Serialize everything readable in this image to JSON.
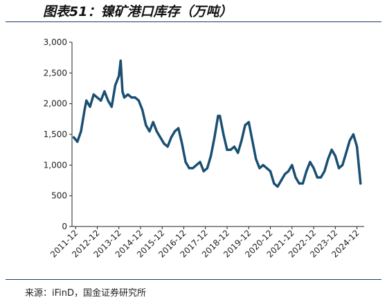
{
  "header": {
    "title": "图表51：镍矿港口库存（万吨）"
  },
  "footer": {
    "source": "来源：iFinD，国金证券研究所"
  },
  "chart_data": {
    "type": "line",
    "title": "图表51：镍矿港口库存（万吨）",
    "xlabel": "",
    "ylabel": "",
    "ylim": [
      0,
      3000
    ],
    "xlim": [
      "2011-10",
      "2025-04"
    ],
    "y_ticks": [
      "0",
      "500",
      "1,000",
      "1,500",
      "2,000",
      "2,500",
      "3,000"
    ],
    "x_ticks": [
      "2011-12",
      "2012-12",
      "2013-12",
      "2014-12",
      "2015-12",
      "2016-12",
      "2017-12",
      "2018-12",
      "2019-12",
      "2020-12",
      "2021-12",
      "2022-12",
      "2023-12",
      "2024-12"
    ],
    "grid": false,
    "legend": "none",
    "color": "#1a4f72",
    "series": [
      {
        "x": [
          "2011-11",
          "2012-01",
          "2012-03",
          "2012-05",
          "2012-06",
          "2012-08",
          "2012-10",
          "2012-12",
          "2013-02",
          "2013-04",
          "2013-06",
          "2013-08",
          "2013-10",
          "2013-12",
          "2014-01",
          "2014-02",
          "2014-03",
          "2014-05",
          "2014-07",
          "2014-09",
          "2014-11",
          "2015-01",
          "2015-03",
          "2015-05",
          "2015-07",
          "2015-09",
          "2015-11",
          "2016-01",
          "2016-03",
          "2016-05",
          "2016-07",
          "2016-09",
          "2016-11",
          "2017-01",
          "2017-03",
          "2017-05",
          "2017-07",
          "2017-09",
          "2017-11",
          "2018-01",
          "2018-03",
          "2018-05",
          "2018-07",
          "2018-08",
          "2018-10",
          "2018-12",
          "2019-02",
          "2019-04",
          "2019-06",
          "2019-08",
          "2019-10",
          "2019-12",
          "2020-02",
          "2020-04",
          "2020-06",
          "2020-08",
          "2020-10",
          "2020-12",
          "2021-02",
          "2021-04",
          "2021-06",
          "2021-08",
          "2021-10",
          "2021-12",
          "2022-02",
          "2022-04",
          "2022-06",
          "2022-08",
          "2022-10",
          "2022-12",
          "2023-02",
          "2023-04",
          "2023-06",
          "2023-08",
          "2023-10",
          "2023-12",
          "2024-02",
          "2024-04",
          "2024-06",
          "2024-08",
          "2024-10",
          "2024-12",
          "2025-02"
        ],
        "values": [
          1450,
          1380,
          1550,
          1900,
          2050,
          1950,
          2150,
          2100,
          2050,
          2200,
          2050,
          1950,
          2300,
          2450,
          2700,
          2200,
          2100,
          2150,
          2100,
          2100,
          2050,
          1900,
          1650,
          1550,
          1700,
          1550,
          1450,
          1350,
          1300,
          1450,
          1550,
          1600,
          1350,
          1050,
          950,
          950,
          1000,
          1050,
          900,
          950,
          1150,
          1450,
          1800,
          1800,
          1500,
          1250,
          1250,
          1300,
          1200,
          1400,
          1650,
          1700,
          1400,
          1100,
          950,
          1000,
          950,
          900,
          700,
          650,
          750,
          850,
          900,
          1000,
          800,
          700,
          700,
          900,
          1050,
          950,
          800,
          800,
          900,
          1100,
          1250,
          1150,
          950,
          1000,
          1200,
          1400,
          1500,
          1300,
          700
        ]
      }
    ]
  }
}
